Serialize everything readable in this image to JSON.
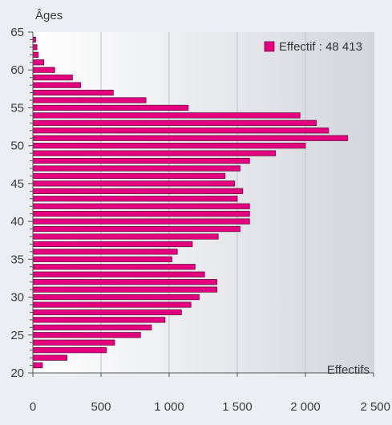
{
  "chart_data": {
    "type": "bar",
    "orientation": "horizontal",
    "ylabel": "Âges",
    "xlabel": "Effectifs",
    "legend": {
      "label": "Effectif : 48 413",
      "position": "top-right"
    },
    "xlim": [
      0,
      2500
    ],
    "ylim": [
      20,
      65
    ],
    "x_ticks": [
      0,
      500,
      1000,
      1500,
      2000,
      2500
    ],
    "x_tick_labels": [
      "0",
      "500",
      "1 000",
      "1 500",
      "2 000",
      "2 500"
    ],
    "y_ticks": [
      20,
      25,
      30,
      35,
      40,
      45,
      50,
      55,
      60,
      65
    ],
    "y_tick_labels": [
      "20",
      "25",
      "30",
      "35",
      "40",
      "45",
      "50",
      "55",
      "60",
      "65"
    ],
    "grid": true,
    "colors": {
      "bar": "#e5007e",
      "bar_edge": "#6b0a3e",
      "legend_swatch": "#e5007e"
    },
    "series": [
      {
        "ages": [
          21,
          22,
          23,
          24,
          25,
          26,
          27,
          28,
          29,
          30,
          31,
          32,
          33,
          34,
          35,
          36,
          37,
          38,
          39,
          40,
          41,
          42,
          43,
          44,
          45,
          46,
          47,
          48,
          49,
          50,
          51,
          52,
          53,
          54,
          55,
          56,
          57,
          58,
          59,
          60,
          61,
          62,
          63,
          64
        ],
        "values": [
          70,
          250,
          540,
          600,
          790,
          870,
          970,
          1090,
          1160,
          1220,
          1350,
          1350,
          1260,
          1190,
          1020,
          1060,
          1170,
          1360,
          1520,
          1590,
          1590,
          1590,
          1500,
          1540,
          1480,
          1410,
          1520,
          1590,
          1780,
          2000,
          2310,
          2170,
          2080,
          1960,
          1140,
          830,
          590,
          350,
          290,
          160,
          80,
          40,
          30,
          20
        ]
      }
    ]
  }
}
